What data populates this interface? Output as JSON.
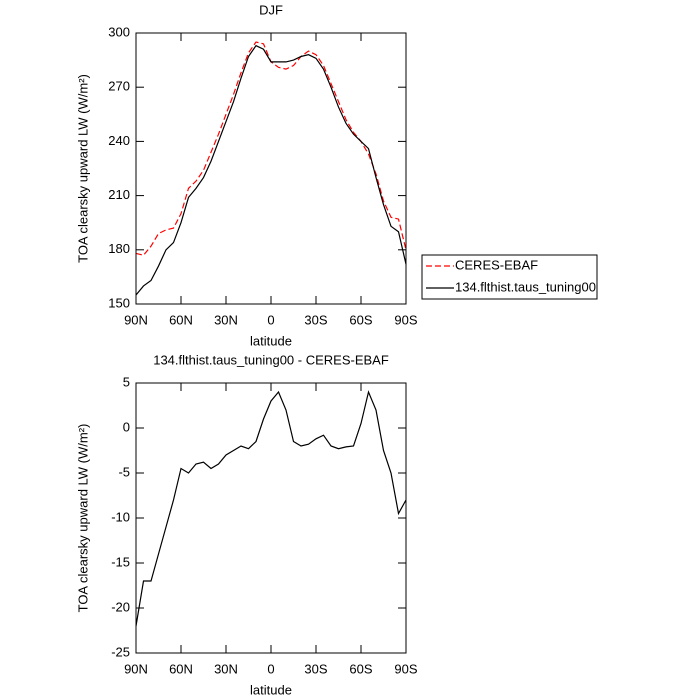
{
  "chart_data": [
    {
      "type": "line",
      "title": "DJF",
      "x_label": "latitude",
      "y_label": "TOA clearsky upward LW (W/m²)",
      "x": [
        90,
        85,
        80,
        75,
        70,
        65,
        60,
        55,
        50,
        45,
        40,
        35,
        30,
        25,
        20,
        15,
        10,
        5,
        0,
        -5,
        -10,
        -15,
        -20,
        -25,
        -30,
        -35,
        -40,
        -45,
        -50,
        -55,
        -60,
        -65,
        -70,
        -75,
        -80,
        -85,
        -90
      ],
      "xlim": [
        90,
        -90
      ],
      "xticks": [
        {
          "value": 90,
          "label": "90N"
        },
        {
          "value": 60,
          "label": "60N"
        },
        {
          "value": 30,
          "label": "30N"
        },
        0,
        {
          "value": -30,
          "label": "30S"
        },
        {
          "value": -60,
          "label": "60S"
        },
        {
          "value": -90,
          "label": "90S"
        }
      ],
      "ylim": [
        150,
        300
      ],
      "yticks": [
        150,
        180,
        210,
        240,
        270,
        300
      ],
      "legend": "right",
      "series": [
        {
          "name": "CERES-EBAF",
          "color": "#ff0000",
          "dashed": true,
          "values": [
            178,
            177,
            182,
            189,
            191,
            192,
            200,
            214,
            218,
            224,
            234,
            244,
            255,
            266,
            278,
            289,
            295,
            294,
            284,
            281,
            280,
            282,
            287,
            290,
            288,
            282,
            272,
            262,
            252,
            245,
            240,
            233,
            222,
            207,
            198,
            197,
            180
          ]
        },
        {
          "name": "134.flthist.taus_tuning00",
          "color": "#000000",
          "dashed": false,
          "values": [
            155,
            160,
            163,
            171,
            180,
            184,
            195,
            209,
            214,
            220,
            229,
            240,
            251,
            262,
            275,
            287,
            293,
            291,
            284,
            284,
            284,
            285,
            287,
            288,
            286,
            280,
            270,
            259,
            250,
            244,
            240,
            236,
            220,
            205,
            193,
            190,
            172
          ]
        }
      ]
    },
    {
      "type": "line",
      "title": "134.flthist.taus_tuning00 - CERES-EBAF",
      "x_label": "latitude",
      "y_label": "TOA clearsky upward LW (W/m²)",
      "x": [
        90,
        85,
        80,
        75,
        70,
        65,
        60,
        55,
        50,
        45,
        40,
        35,
        30,
        25,
        20,
        15,
        10,
        5,
        0,
        -5,
        -10,
        -15,
        -20,
        -25,
        -30,
        -35,
        -40,
        -45,
        -50,
        -55,
        -60,
        -65,
        -70,
        -75,
        -80,
        -85,
        -90
      ],
      "xlim": [
        90,
        -90
      ],
      "xticks": [
        {
          "value": 90,
          "label": "90N"
        },
        {
          "value": 60,
          "label": "60N"
        },
        {
          "value": 30,
          "label": "30N"
        },
        0,
        {
          "value": -30,
          "label": "30S"
        },
        {
          "value": -60,
          "label": "60S"
        },
        {
          "value": -90,
          "label": "90S"
        }
      ],
      "ylim": [
        -25,
        5
      ],
      "yticks": [
        -25,
        -20,
        -15,
        -10,
        -5,
        0,
        5
      ],
      "series": [
        {
          "color": "#000000",
          "dashed": false,
          "values": [
            -22,
            -17,
            -17,
            -14,
            -11,
            -8,
            -4.5,
            -5,
            -4,
            -3.8,
            -4.5,
            -4,
            -3,
            -2.5,
            -2,
            -2.3,
            -1.5,
            1,
            3,
            4,
            2,
            -1.5,
            -2,
            -1.8,
            -1.2,
            -0.8,
            -2,
            -2.3,
            -2.1,
            -2,
            0.5,
            4,
            2,
            -2.5,
            -5,
            -9.5,
            -8
          ]
        }
      ]
    }
  ]
}
